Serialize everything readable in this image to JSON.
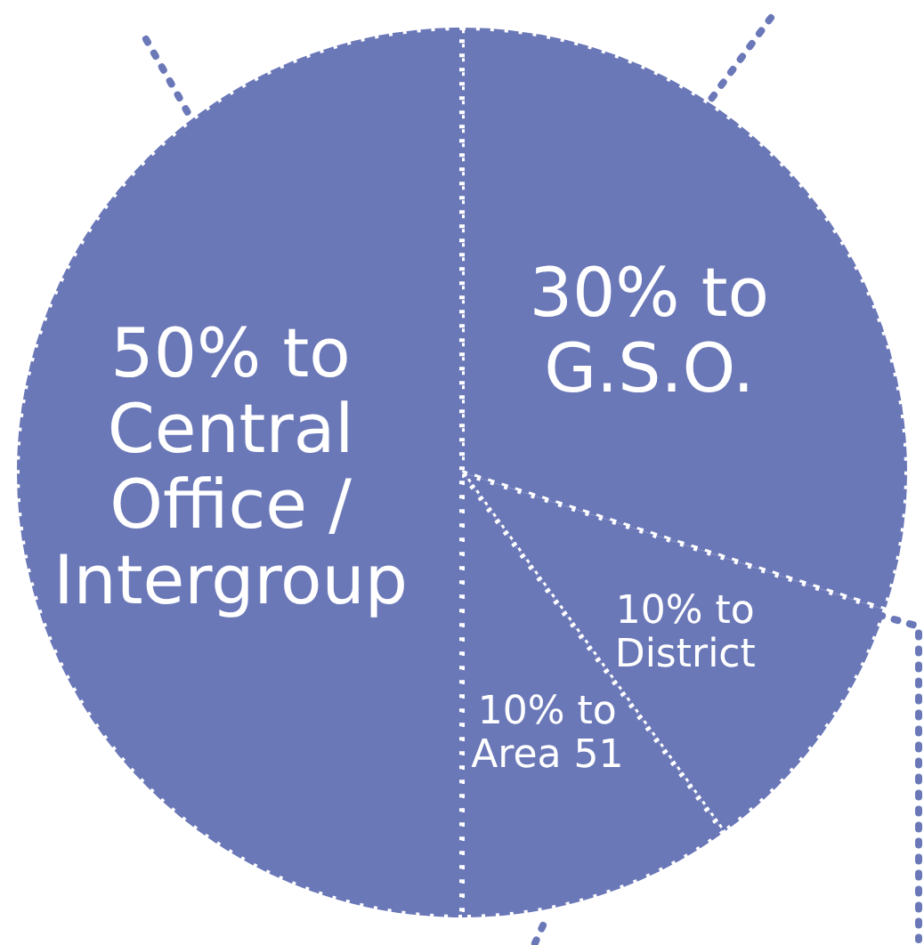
{
  "chart_data": {
    "type": "pie",
    "categories": [
      "G.S.O.",
      "District",
      "Area 51",
      "Central Office / Intergroup"
    ],
    "values": [
      30,
      10,
      10,
      50
    ],
    "value_labels": [
      "30% to",
      "10% to",
      "10% to",
      "50% to"
    ],
    "colors": [
      "#6b78b8",
      "#6b78b8",
      "#6b78b8",
      "#6b78b8"
    ],
    "legend": false
  }
}
